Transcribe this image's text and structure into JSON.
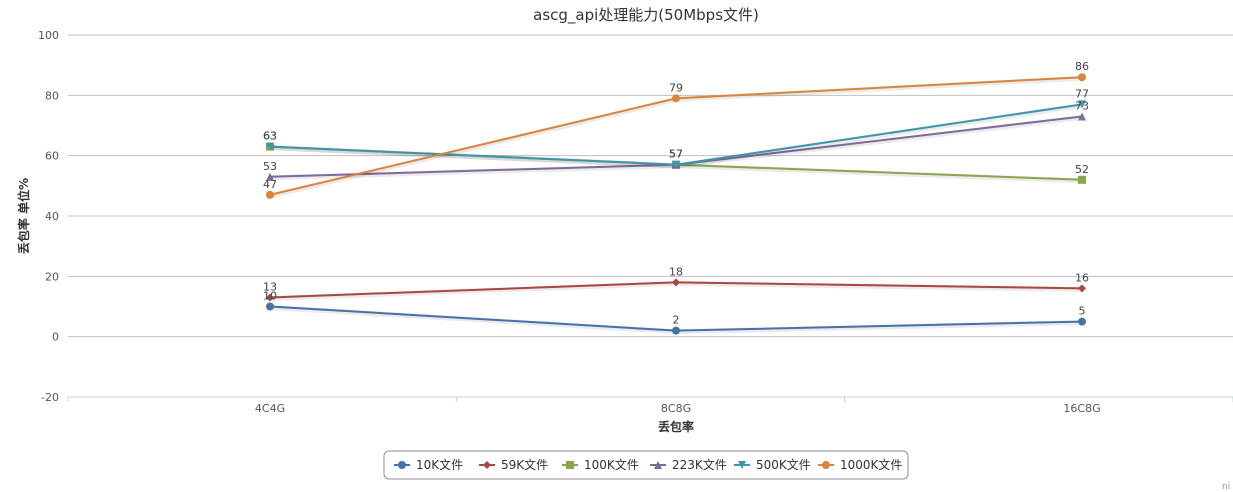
{
  "chart_data": {
    "type": "line",
    "title": "ascg_api处理能力(50Mbps文件)",
    "xlabel": "丢包率",
    "ylabel": "丢包率 单位%",
    "categories": [
      "4C4G",
      "8C8G",
      "16C8G"
    ],
    "ylim": [
      -20,
      100
    ],
    "yticks": [
      -20,
      0,
      20,
      40,
      60,
      80,
      100
    ],
    "grid": true,
    "legend_position": "bottom-center",
    "series": [
      {
        "name": "10K文件",
        "values": [
          10,
          2,
          5
        ],
        "color": "#4572a7",
        "marker": "circle"
      },
      {
        "name": "59K文件",
        "values": [
          13,
          18,
          16
        ],
        "color": "#aa4643",
        "marker": "diamond"
      },
      {
        "name": "100K文件",
        "values": [
          63,
          57,
          52
        ],
        "color": "#89a54e",
        "marker": "square"
      },
      {
        "name": "223K文件",
        "values": [
          53,
          57,
          73
        ],
        "color": "#80699b",
        "marker": "triangle"
      },
      {
        "name": "500K文件",
        "values": [
          63,
          57,
          77
        ],
        "color": "#3d96ae",
        "marker": "triangle-down"
      },
      {
        "name": "1000K文件",
        "values": [
          47,
          79,
          86
        ],
        "color": "#db843d",
        "marker": "circle"
      }
    ]
  },
  "credit": "ni"
}
